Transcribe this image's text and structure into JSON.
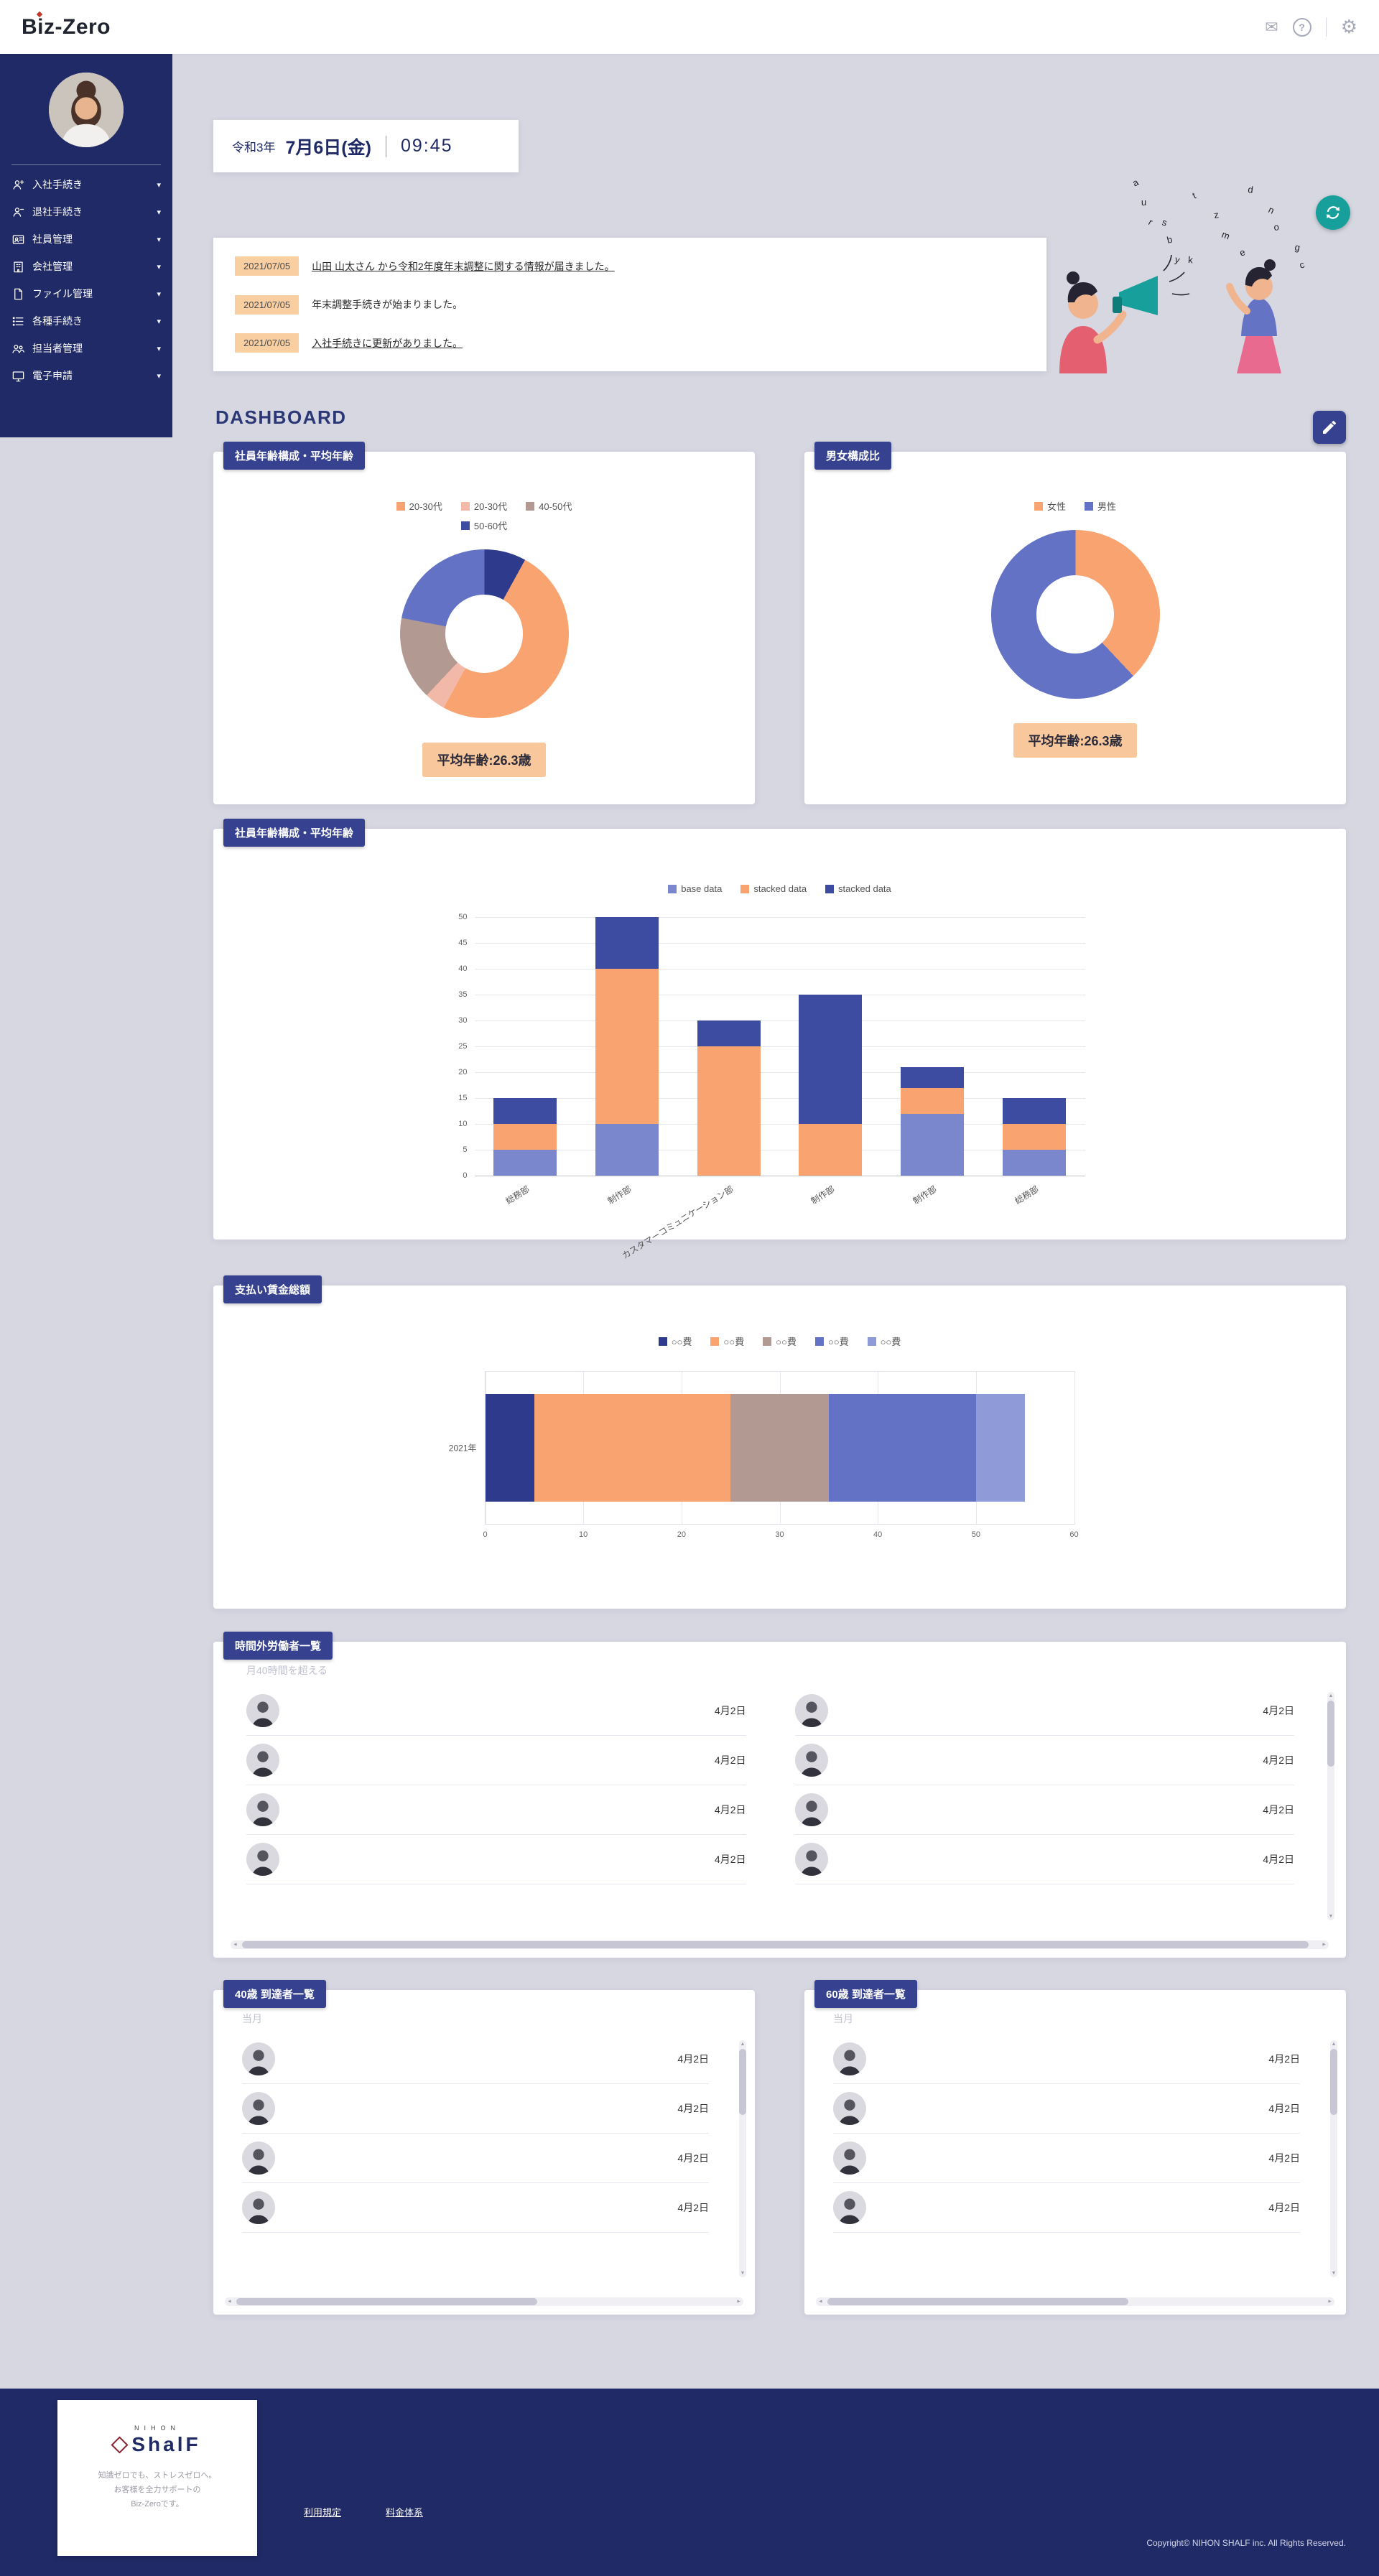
{
  "icons": {
    "mail": "✉",
    "help": "?",
    "settings": "⚙",
    "chevron_down": "▾",
    "scroll_up": "▲",
    "scroll_down": "▼",
    "scroll_left": "◄",
    "scroll_right": "►"
  },
  "colors": {
    "accent_navy": "#36418f",
    "sidebar_navy": "#202a66",
    "highlight_orange": "#f9c79c",
    "teal": "#17a09b"
  },
  "header": {
    "logo": "Biz-Zero"
  },
  "sidebar": {
    "items": [
      {
        "label": "入社手続き",
        "icon": "person-in"
      },
      {
        "label": "退社手続き",
        "icon": "person-out"
      },
      {
        "label": "社員管理",
        "icon": "id-card"
      },
      {
        "label": "会社管理",
        "icon": "building"
      },
      {
        "label": "ファイル管理",
        "icon": "file"
      },
      {
        "label": "各種手続き",
        "icon": "list"
      },
      {
        "label": "担当者管理",
        "icon": "people"
      },
      {
        "label": "電子申請",
        "icon": "monitor"
      }
    ]
  },
  "datebar": {
    "era": "令和3年",
    "date": "7月6日(金)",
    "time": "09:45"
  },
  "notifications": [
    {
      "date": "2021/07/05",
      "text": "山田 山太さん から令和2年度年末調整に関する情報が届きました。",
      "is_link": true
    },
    {
      "date": "2021/07/05",
      "text": "年末調整手続きが始まりました。",
      "is_link": false
    },
    {
      "date": "2021/07/05",
      "text": "入社手続きに更新がありました。",
      "is_link": true
    }
  ],
  "dashboard_title": "DASHBOARD",
  "illustration": {
    "letters": [
      "a",
      "s",
      "k",
      "z",
      "e",
      "n",
      "g",
      "u",
      "b",
      "t",
      "m",
      "d",
      "o",
      "c",
      "r",
      "y"
    ]
  },
  "chart_data": [
    {
      "type": "pie",
      "donut": true,
      "title": "社員年齢構成・平均年齢",
      "legend": [
        {
          "label": "20-30代",
          "color": "#f9a470"
        },
        {
          "label": "20-30代",
          "color": "#f2b8a8"
        },
        {
          "label": "40-50代",
          "color": "#b29a92"
        },
        {
          "label": "50-60代",
          "color": "#3d4ba0"
        }
      ],
      "slices": [
        {
          "label": "50-60代",
          "value": 8,
          "color": "#2e3b8c"
        },
        {
          "label": "20-30代",
          "value": 50,
          "color": "#f9a470"
        },
        {
          "label": "20-30代",
          "value": 4,
          "color": "#f2b8a8"
        },
        {
          "label": "40-50代",
          "value": 16,
          "color": "#b29a92"
        },
        {
          "label": "50-60代",
          "value": 22,
          "color": "#6372c4"
        }
      ],
      "badge": "平均年齢:26.3歳",
      "legend_position": "top"
    },
    {
      "type": "pie",
      "donut": true,
      "title": "男女構成比",
      "legend": [
        {
          "label": "女性",
          "color": "#f9a470"
        },
        {
          "label": "男性",
          "color": "#6372c4"
        }
      ],
      "slices": [
        {
          "label": "女性",
          "value": 38,
          "color": "#f9a470"
        },
        {
          "label": "男性",
          "value": 62,
          "color": "#6372c4"
        }
      ],
      "badge": "平均年齢:26.3歳",
      "legend_position": "top"
    },
    {
      "type": "bar",
      "title": "社員年齢構成・平均年齢",
      "categories": [
        "総務部",
        "制作部",
        "カスタマーコミュニケーション部",
        "制作部",
        "制作部",
        "総務部"
      ],
      "series": [
        {
          "name": "base data",
          "color": "#7b87cd",
          "values": [
            5,
            10,
            0,
            0,
            12,
            5
          ]
        },
        {
          "name": "stacked data",
          "color": "#f9a470",
          "values": [
            5,
            30,
            25,
            10,
            5,
            5
          ]
        },
        {
          "name": "stacked data",
          "color": "#3d4ba0",
          "values": [
            5,
            10,
            5,
            25,
            4,
            5
          ]
        }
      ],
      "ylim": [
        0,
        50
      ],
      "ytick": 5,
      "grid": true,
      "legend_position": "top"
    },
    {
      "type": "bar-horizontal",
      "title": "支払い賃金総額",
      "categories": [
        "2021年"
      ],
      "series": [
        {
          "name": "○○費",
          "color": "#2e3b8c",
          "values": [
            5
          ]
        },
        {
          "name": "○○費",
          "color": "#f9a470",
          "values": [
            20
          ]
        },
        {
          "name": "○○費",
          "color": "#b29a92",
          "values": [
            10
          ]
        },
        {
          "name": "○○費",
          "color": "#6372c4",
          "values": [
            15
          ]
        },
        {
          "name": "○○費",
          "color": "#8f9bd9",
          "values": [
            5
          ]
        }
      ],
      "xlim": [
        0,
        60
      ],
      "xtick": 10,
      "grid": true,
      "legend_position": "top"
    }
  ],
  "overtime": {
    "title": "時間外労働者一覧",
    "subtitle": "月40時間を超える",
    "left_rows": [
      {
        "date": "4月2日"
      },
      {
        "date": "4月2日"
      },
      {
        "date": "4月2日"
      },
      {
        "date": "4月2日"
      }
    ],
    "right_rows": [
      {
        "date": "4月2日"
      },
      {
        "date": "4月2日"
      },
      {
        "date": "4月2日"
      },
      {
        "date": "4月2日"
      }
    ]
  },
  "age40": {
    "title": "40歳 到達者一覧",
    "subtitle": "当月",
    "rows": [
      {
        "date": "4月2日"
      },
      {
        "date": "4月2日"
      },
      {
        "date": "4月2日"
      },
      {
        "date": "4月2日"
      }
    ]
  },
  "age60": {
    "title": "60歳 到達者一覧",
    "subtitle": "当月",
    "rows": [
      {
        "date": "4月2日"
      },
      {
        "date": "4月2日"
      },
      {
        "date": "4月2日"
      },
      {
        "date": "4月2日"
      }
    ]
  },
  "footer": {
    "brand": {
      "name_top": "NIHON",
      "name": "ShalF",
      "tagline1": "知識ゼロでも、ストレスゼロへ。",
      "tagline2": "お客様を全力サポートの",
      "tagline3": "Biz-Zeroです。"
    },
    "links": [
      {
        "label": "利用規定"
      },
      {
        "label": "料金体系"
      }
    ],
    "copyright": "Copyright© NIHON SHALF inc. All Rights Reserved."
  }
}
